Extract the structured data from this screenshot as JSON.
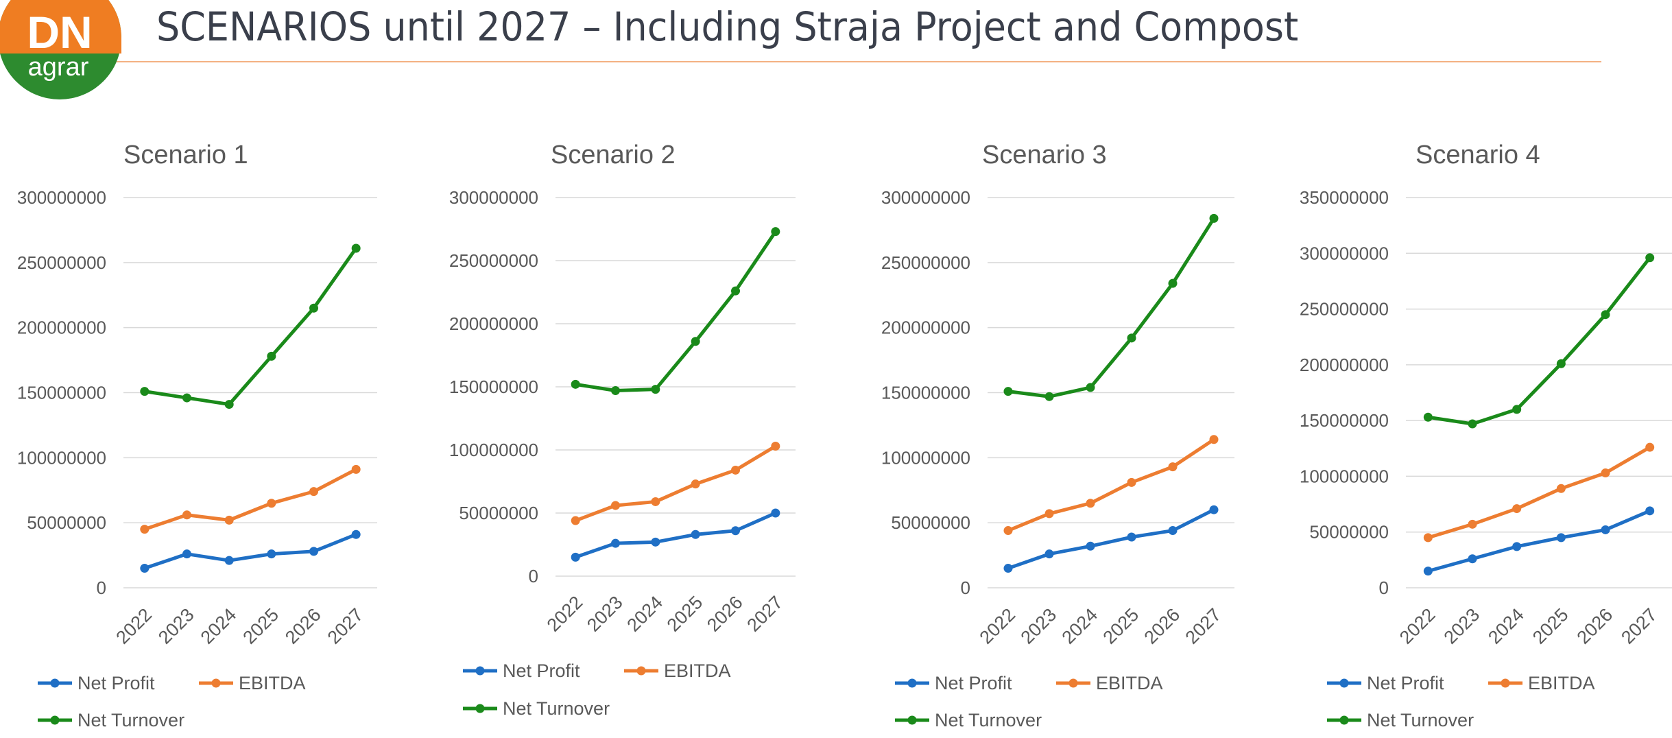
{
  "header": {
    "title": "SCENARIOS until 2027 – Including Straja Project and Compost",
    "logo_text_top": "DN",
    "logo_text_bottom": "agrar",
    "logo_colors": {
      "orange": "#ef7d22",
      "green": "#2d8b2f"
    },
    "rule_color": "#f4b183"
  },
  "colors": {
    "net_profit": "#1f6fc5",
    "ebitda": "#ed7d31",
    "net_turnover": "#1a8a1a",
    "gridline": "#d9d9d9",
    "text": "#595959"
  },
  "chart_data": [
    {
      "type": "line",
      "title": "Scenario 1",
      "categories": [
        "2022",
        "2023",
        "2024",
        "2025",
        "2026",
        "2027"
      ],
      "ylim": [
        0,
        300000000
      ],
      "yticks": [
        "0",
        "50000000",
        "100000000",
        "150000000",
        "200000000",
        "250000000",
        "300000000"
      ],
      "grid": true,
      "legend_position": "bottom",
      "series": [
        {
          "name": "Net Profit",
          "values": [
            15000000,
            26000000,
            21000000,
            26000000,
            28000000,
            41000000
          ]
        },
        {
          "name": "EBITDA",
          "values": [
            45000000,
            56000000,
            52000000,
            65000000,
            74000000,
            91000000
          ]
        },
        {
          "name": "Net Turnover",
          "values": [
            151000000,
            146000000,
            141000000,
            178000000,
            215000000,
            261000000
          ]
        }
      ]
    },
    {
      "type": "line",
      "title": "Scenario 2",
      "categories": [
        "2022",
        "2023",
        "2024",
        "2025",
        "2026",
        "2027"
      ],
      "ylim": [
        0,
        300000000
      ],
      "yticks": [
        "0",
        "50000000",
        "100000000",
        "150000000",
        "200000000",
        "250000000",
        "300000000"
      ],
      "grid": true,
      "legend_position": "bottom",
      "series": [
        {
          "name": "Net Profit",
          "values": [
            15000000,
            26000000,
            27000000,
            33000000,
            36000000,
            50000000
          ]
        },
        {
          "name": "EBITDA",
          "values": [
            44000000,
            56000000,
            59000000,
            73000000,
            84000000,
            103000000
          ]
        },
        {
          "name": "Net Turnover",
          "values": [
            152000000,
            147000000,
            148000000,
            186000000,
            226000000,
            273000000
          ]
        }
      ]
    },
    {
      "type": "line",
      "title": "Scenario 3",
      "categories": [
        "2022",
        "2023",
        "2024",
        "2025",
        "2026",
        "2027"
      ],
      "ylim": [
        0,
        300000000
      ],
      "yticks": [
        "0",
        "50000000",
        "100000000",
        "150000000",
        "200000000",
        "250000000",
        "300000000"
      ],
      "grid": true,
      "legend_position": "bottom",
      "series": [
        {
          "name": "Net Profit",
          "values": [
            15000000,
            26000000,
            32000000,
            39000000,
            44000000,
            60000000
          ]
        },
        {
          "name": "EBITDA",
          "values": [
            44000000,
            57000000,
            65000000,
            81000000,
            93000000,
            114000000
          ]
        },
        {
          "name": "Net Turnover",
          "values": [
            151000000,
            147000000,
            154000000,
            192000000,
            234000000,
            284000000
          ]
        }
      ]
    },
    {
      "type": "line",
      "title": "Scenario 4",
      "categories": [
        "2022",
        "2023",
        "2024",
        "2025",
        "2026",
        "2027"
      ],
      "ylim": [
        0,
        350000000
      ],
      "yticks": [
        "0",
        "50000000",
        "100000000",
        "150000000",
        "200000000",
        "250000000",
        "300000000",
        "350000000"
      ],
      "grid": true,
      "legend_position": "bottom",
      "series": [
        {
          "name": "Net Profit",
          "values": [
            15000000,
            26000000,
            37000000,
            45000000,
            52000000,
            69000000
          ]
        },
        {
          "name": "EBITDA",
          "values": [
            45000000,
            57000000,
            71000000,
            89000000,
            103000000,
            126000000
          ]
        },
        {
          "name": "Net Turnover",
          "values": [
            153000000,
            147000000,
            160000000,
            201000000,
            245000000,
            296000000
          ]
        }
      ]
    }
  ]
}
